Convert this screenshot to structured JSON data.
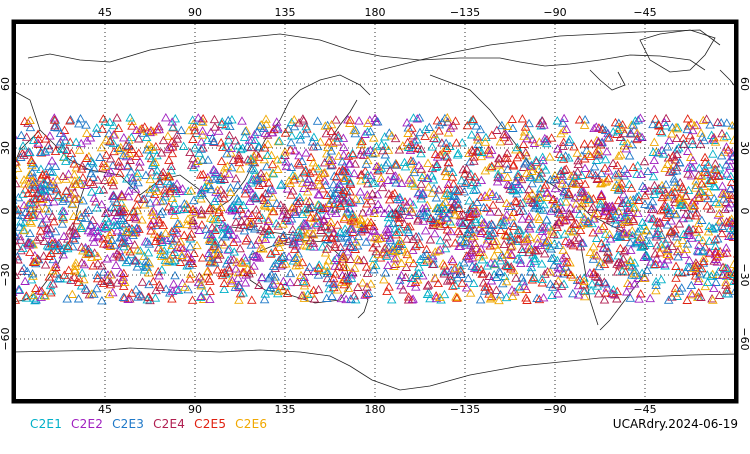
{
  "map": {
    "type": "scatter-map",
    "projection": "cylindrical-equidistant",
    "lon_range": [
      0,
      360
    ],
    "lat_range": [
      -90,
      90
    ],
    "central_longitude": 180,
    "grid": true,
    "grid_style": "dotted",
    "x_tick_labels": [
      "45",
      "90",
      "135",
      "180",
      "−135",
      "−90",
      "−45"
    ],
    "y_tick_labels": [
      "60",
      "30",
      "0",
      "−30",
      "−60"
    ],
    "y_tick_values": [
      60,
      30,
      0,
      -30,
      -60
    ],
    "marker": "open-triangle",
    "observation_lat_band": [
      -42,
      44
    ]
  },
  "legend": {
    "items": [
      {
        "label": "C2E1",
        "color": "#00b0c8"
      },
      {
        "label": "C2E2",
        "color": "#a020c0"
      },
      {
        "label": "C2E3",
        "color": "#1e78c8"
      },
      {
        "label": "C2E4",
        "color": "#b01e50"
      },
      {
        "label": "C2E5",
        "color": "#e02010"
      },
      {
        "label": "C2E6",
        "color": "#f0a800"
      }
    ]
  },
  "footer": {
    "stamp": "UCARdry.2024-06-19"
  }
}
